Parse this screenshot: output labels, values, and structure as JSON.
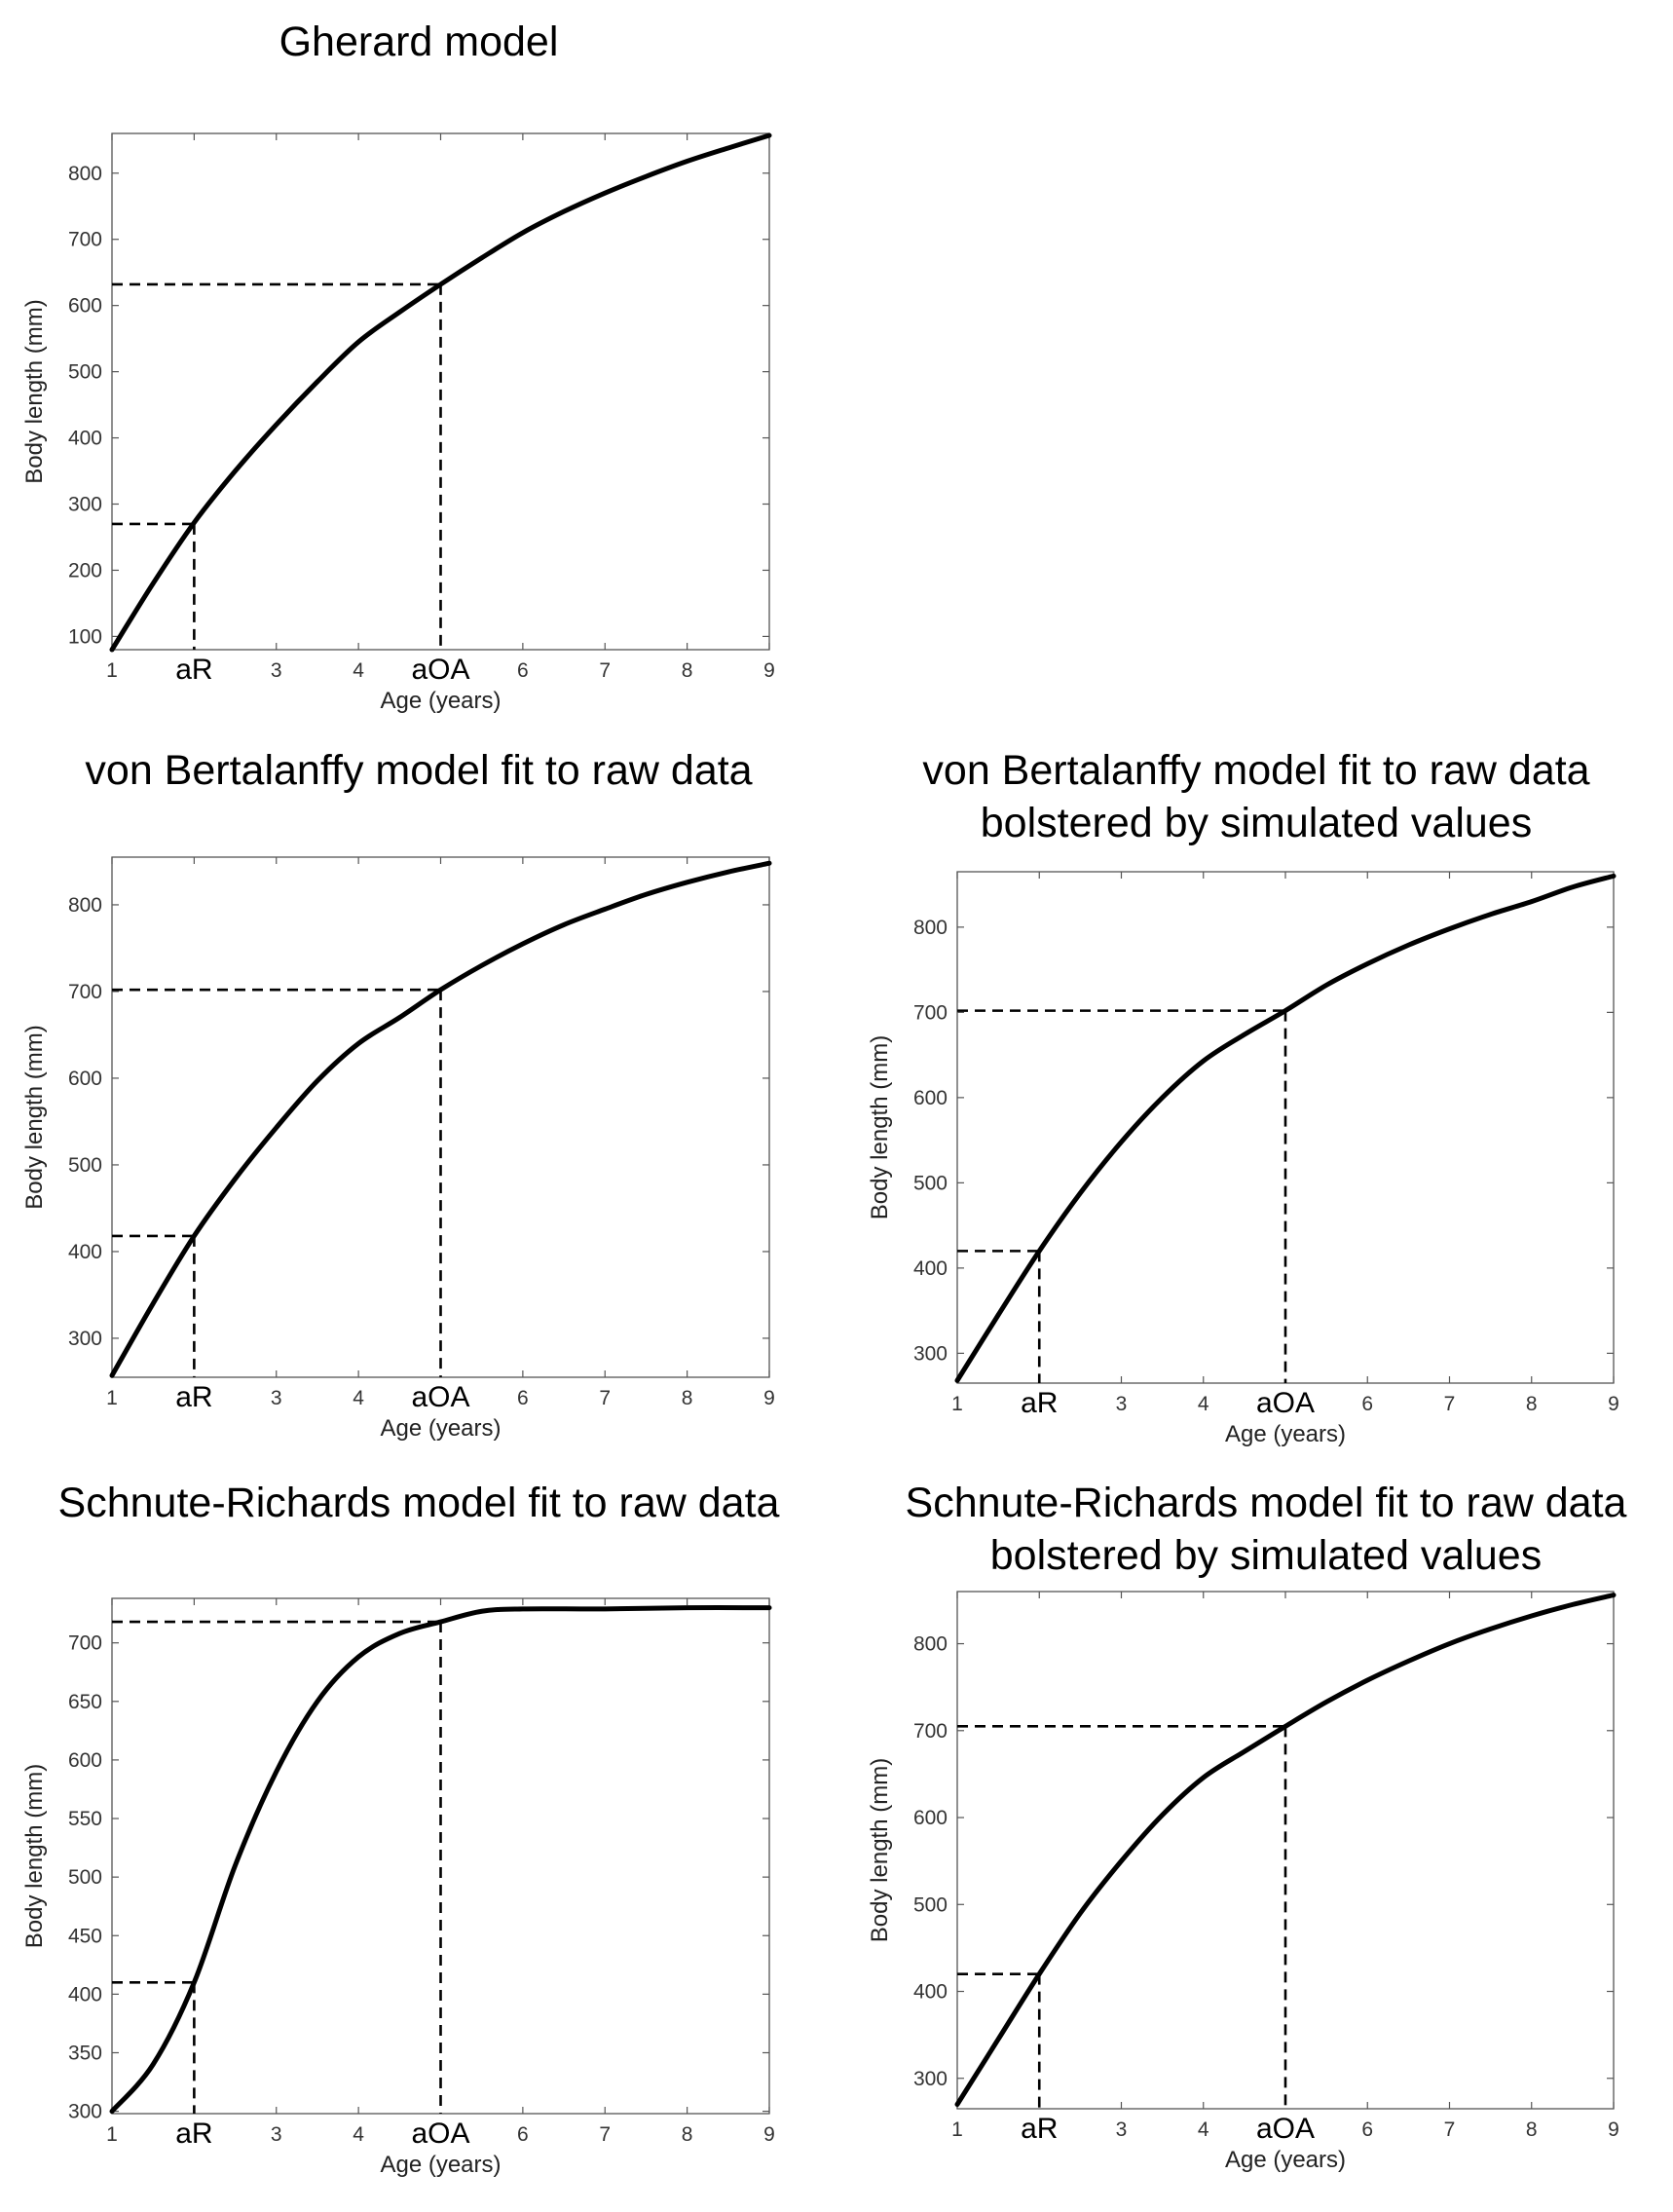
{
  "chart_data": [
    {
      "type": "line",
      "title": "Gherard model",
      "xlabel": "Age (years)",
      "ylabel": "Body length (mm)",
      "xlim": [
        1,
        9
      ],
      "ylim": [
        80,
        860
      ],
      "xticks": [
        1,
        3,
        4,
        6,
        7,
        8,
        9
      ],
      "yticks": [
        100,
        200,
        300,
        400,
        500,
        600,
        700,
        800
      ],
      "special_ticks": [
        {
          "x": 2,
          "label": "aR"
        },
        {
          "x": 5,
          "label": "aOA"
        }
      ],
      "series": [
        {
          "name": "growth curve",
          "x": [
            1,
            1.5,
            2,
            2.5,
            3,
            3.5,
            4,
            4.5,
            5,
            5.5,
            6,
            6.5,
            7,
            7.5,
            8,
            8.5,
            9
          ],
          "y": [
            80,
            180,
            272,
            350,
            420,
            485,
            545,
            590,
            632,
            672,
            710,
            742,
            770,
            795,
            818,
            838,
            857
          ]
        }
      ],
      "reference_lines": [
        {
          "x": 2,
          "y": 270
        },
        {
          "x": 5,
          "y": 632
        }
      ]
    },
    {
      "type": "line",
      "title": "von Bertalanffy model fit to raw data",
      "xlabel": "Age (years)",
      "ylabel": "Body length (mm)",
      "xlim": [
        1,
        9
      ],
      "ylim": [
        255,
        855
      ],
      "xticks": [
        1,
        3,
        4,
        6,
        7,
        8,
        9
      ],
      "yticks": [
        300,
        400,
        500,
        600,
        700,
        800
      ],
      "special_ticks": [
        {
          "x": 2,
          "label": "aR"
        },
        {
          "x": 5,
          "label": "aOA"
        }
      ],
      "series": [
        {
          "name": "growth curve",
          "x": [
            1,
            1.5,
            2,
            2.5,
            3,
            3.5,
            4,
            4.5,
            5,
            5.5,
            6,
            6.5,
            7,
            7.5,
            8,
            8.5,
            9
          ],
          "y": [
            257,
            340,
            418,
            484,
            543,
            597,
            640,
            670,
            702,
            730,
            755,
            777,
            795,
            812,
            826,
            838,
            848
          ]
        }
      ],
      "reference_lines": [
        {
          "x": 2,
          "y": 418
        },
        {
          "x": 5,
          "y": 702
        }
      ]
    },
    {
      "type": "line",
      "title": "von Bertalanffy model fit to raw data\nbolstered by simulated values",
      "xlabel": "Age (years)",
      "ylabel": "Body length (mm)",
      "xlim": [
        1,
        9
      ],
      "ylim": [
        265,
        865
      ],
      "xticks": [
        1,
        3,
        4,
        6,
        7,
        8,
        9
      ],
      "yticks": [
        300,
        400,
        500,
        600,
        700,
        800
      ],
      "special_ticks": [
        {
          "x": 2,
          "label": "aR"
        },
        {
          "x": 5,
          "label": "aOA"
        }
      ],
      "series": [
        {
          "name": "growth curve",
          "x": [
            1,
            1.5,
            2,
            2.5,
            3,
            3.5,
            4,
            4.5,
            5,
            5.5,
            6,
            6.5,
            7,
            7.5,
            8,
            8.5,
            9
          ],
          "y": [
            268,
            345,
            420,
            488,
            548,
            600,
            643,
            674,
            702,
            732,
            757,
            779,
            798,
            815,
            830,
            847,
            860
          ]
        }
      ],
      "reference_lines": [
        {
          "x": 2,
          "y": 420
        },
        {
          "x": 5,
          "y": 702
        }
      ]
    },
    {
      "type": "line",
      "title": "Schnute-Richards model fit to raw data",
      "xlabel": "Age (years)",
      "ylabel": "Body length (mm)",
      "xlim": [
        1,
        9
      ],
      "ylim": [
        298,
        738
      ],
      "xticks": [
        1,
        3,
        4,
        6,
        7,
        8,
        9
      ],
      "yticks": [
        300,
        350,
        400,
        450,
        500,
        550,
        600,
        650,
        700
      ],
      "special_ticks": [
        {
          "x": 2,
          "label": "aR"
        },
        {
          "x": 5,
          "label": "aOA"
        }
      ],
      "series": [
        {
          "name": "growth curve",
          "x": [
            1,
            1.5,
            2,
            2.5,
            3,
            3.5,
            4,
            4.5,
            5,
            5.5,
            6,
            7,
            8,
            9
          ],
          "y": [
            300,
            340,
            410,
            510,
            590,
            650,
            688,
            708,
            718,
            727,
            729,
            729,
            730,
            730
          ]
        }
      ],
      "reference_lines": [
        {
          "x": 2,
          "y": 410
        },
        {
          "x": 5,
          "y": 718
        }
      ]
    },
    {
      "type": "line",
      "title": "Schnute-Richards model fit to raw data\nbolstered by simulated values",
      "xlabel": "Age (years)",
      "ylabel": "Body length (mm)",
      "xlim": [
        1,
        9
      ],
      "ylim": [
        265,
        860
      ],
      "xticks": [
        1,
        3,
        4,
        6,
        7,
        8,
        9
      ],
      "yticks": [
        300,
        400,
        500,
        600,
        700,
        800
      ],
      "special_ticks": [
        {
          "x": 2,
          "label": "aR"
        },
        {
          "x": 5,
          "label": "aOA"
        }
      ],
      "series": [
        {
          "name": "growth curve",
          "x": [
            1,
            1.5,
            2,
            2.5,
            3,
            3.5,
            4,
            4.5,
            5,
            5.5,
            6,
            6.5,
            7,
            7.5,
            8,
            8.5,
            9
          ],
          "y": [
            270,
            345,
            420,
            490,
            550,
            603,
            646,
            676,
            705,
            733,
            758,
            780,
            800,
            817,
            832,
            845,
            856
          ]
        }
      ],
      "reference_lines": [
        {
          "x": 2,
          "y": 420
        },
        {
          "x": 5,
          "y": 705
        }
      ]
    }
  ]
}
